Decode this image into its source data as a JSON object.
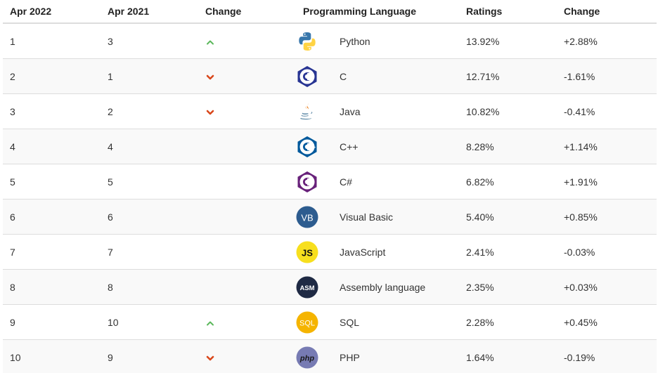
{
  "header": {
    "col_apr2022": "Apr 2022",
    "col_apr2021": "Apr 2021",
    "col_change": "Change",
    "col_language": "Programming Language",
    "col_ratings": "Ratings",
    "col_change2": "Change"
  },
  "colors": {
    "up": "#5cb85c",
    "down": "#d9481c",
    "border": "#dddddd",
    "stripe": "#f9f9f9"
  },
  "rows": [
    {
      "rank2022": "1",
      "rank2021": "3",
      "trend": "up",
      "icon": "python-icon",
      "language": "Python",
      "rating": "13.92%",
      "change": "+2.88%"
    },
    {
      "rank2022": "2",
      "rank2021": "1",
      "trend": "down",
      "icon": "c-icon",
      "language": "C",
      "rating": "12.71%",
      "change": "-1.61%"
    },
    {
      "rank2022": "3",
      "rank2021": "2",
      "trend": "down",
      "icon": "java-icon",
      "language": "Java",
      "rating": "10.82%",
      "change": "-0.41%"
    },
    {
      "rank2022": "4",
      "rank2021": "4",
      "trend": "none",
      "icon": "cpp-icon",
      "language": "C++",
      "rating": "8.28%",
      "change": "+1.14%"
    },
    {
      "rank2022": "5",
      "rank2021": "5",
      "trend": "none",
      "icon": "csharp-icon",
      "language": "C#",
      "rating": "6.82%",
      "change": "+1.91%"
    },
    {
      "rank2022": "6",
      "rank2021": "6",
      "trend": "none",
      "icon": "visual-basic-icon",
      "icon_text": "VB",
      "language": "Visual Basic",
      "rating": "5.40%",
      "change": "+0.85%"
    },
    {
      "rank2022": "7",
      "rank2021": "7",
      "trend": "none",
      "icon": "javascript-icon",
      "icon_text": "JS",
      "language": "JavaScript",
      "rating": "2.41%",
      "change": "-0.03%"
    },
    {
      "rank2022": "8",
      "rank2021": "8",
      "trend": "none",
      "icon": "assembly-icon",
      "icon_text": "ASM",
      "language": "Assembly language",
      "rating": "2.35%",
      "change": "+0.03%"
    },
    {
      "rank2022": "9",
      "rank2021": "10",
      "trend": "up",
      "icon": "sql-icon",
      "icon_text": "SQL",
      "language": "SQL",
      "rating": "2.28%",
      "change": "+0.45%"
    },
    {
      "rank2022": "10",
      "rank2021": "9",
      "trend": "down",
      "icon": "php-icon",
      "icon_text": "php",
      "language": "PHP",
      "rating": "1.64%",
      "change": "-0.19%"
    }
  ]
}
